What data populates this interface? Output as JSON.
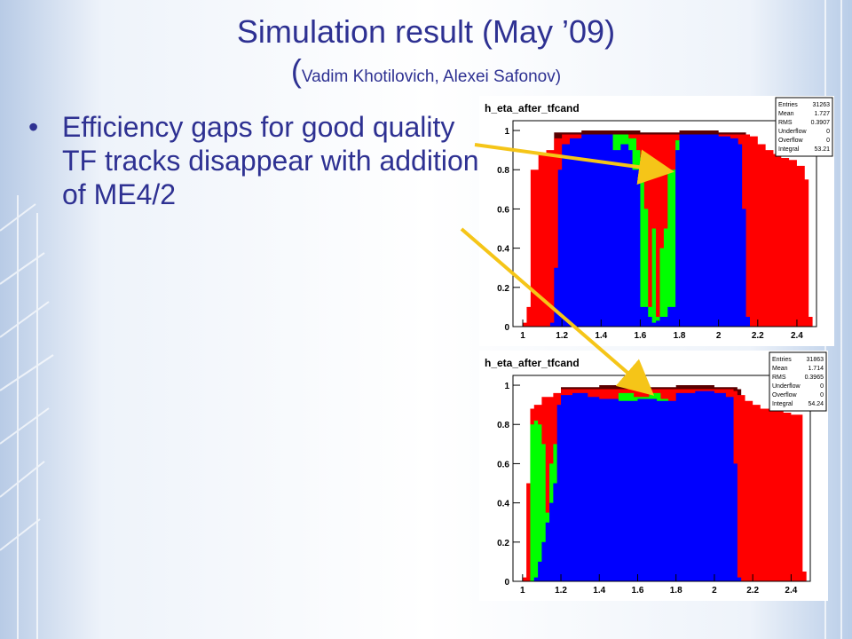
{
  "slide": {
    "title_line1": "Simulation result (May ’09)",
    "title_open": "(",
    "title_authors": "Vadim Khotilovich, Alexei Safonov)",
    "bullet": "Efficiency gaps for good quality TF tracks disappear with addition of ME4/2"
  },
  "colors": {
    "title": "#2e3192",
    "red": "#ff0000",
    "blue": "#0000ff",
    "green": "#00ff00",
    "arrow": "#f5c518"
  },
  "chart_data": [
    {
      "type": "histogram",
      "title": "h_eta_after_tfcand",
      "xlim": [
        0.95,
        2.5
      ],
      "ylim": [
        0,
        1.05
      ],
      "xticks": [
        "1",
        "1.2",
        "1.4",
        "1.6",
        "1.8",
        "2",
        "2.2",
        "2.4"
      ],
      "yticks": [
        "0",
        "0.2",
        "0.4",
        "0.6",
        "0.8",
        "1"
      ],
      "stats": {
        "labels": [
          "Entries",
          "Mean",
          "RMS",
          "Underflow",
          "Overflow",
          "Integral"
        ],
        "values": [
          "31263",
          "1.727",
          "0.3907",
          "0",
          "0",
          "53.21"
        ]
      },
      "red": [
        [
          1.0,
          0.02
        ],
        [
          1.02,
          0.1
        ],
        [
          1.04,
          0.8
        ],
        [
          1.08,
          0.88
        ],
        [
          1.12,
          0.9
        ],
        [
          1.16,
          0.96
        ],
        [
          1.2,
          0.98
        ],
        [
          2.16,
          0.97
        ],
        [
          2.2,
          0.93
        ],
        [
          2.24,
          0.9
        ],
        [
          2.28,
          0.88
        ],
        [
          2.32,
          0.86
        ],
        [
          2.36,
          0.85
        ],
        [
          2.4,
          0.82
        ],
        [
          2.44,
          0.75
        ],
        [
          2.46,
          0.05
        ]
      ],
      "green": [
        [
          1.46,
          0.98
        ],
        [
          1.54,
          0.96
        ],
        [
          1.58,
          0.9
        ],
        [
          1.6,
          0.8
        ],
        [
          1.62,
          0.6
        ],
        [
          1.64,
          0.1
        ],
        [
          1.66,
          0.5
        ],
        [
          1.68,
          0.05
        ],
        [
          1.7,
          0.4
        ],
        [
          1.72,
          0.5
        ],
        [
          1.74,
          0.8
        ],
        [
          1.78,
          0.95
        ]
      ],
      "blue": [
        [
          1.14,
          0.02
        ],
        [
          1.16,
          0.3
        ],
        [
          1.18,
          0.8
        ],
        [
          1.2,
          0.93
        ],
        [
          1.24,
          0.96
        ],
        [
          1.3,
          0.98
        ],
        [
          1.4,
          0.98
        ],
        [
          1.46,
          0.9
        ],
        [
          1.5,
          0.93
        ],
        [
          1.54,
          0.9
        ],
        [
          1.56,
          0.8
        ],
        [
          1.6,
          0.1
        ],
        [
          1.64,
          0.05
        ],
        [
          1.66,
          0.02
        ],
        [
          1.68,
          0.03
        ],
        [
          1.7,
          0.05
        ],
        [
          1.74,
          0.1
        ],
        [
          1.78,
          0.9
        ],
        [
          1.8,
          0.98
        ],
        [
          2.0,
          0.97
        ],
        [
          2.06,
          0.96
        ],
        [
          2.1,
          0.93
        ],
        [
          2.12,
          0.6
        ],
        [
          2.14,
          0.05
        ]
      ],
      "dark": [
        [
          1.16,
          0.99
        ],
        [
          1.3,
          1.0
        ],
        [
          1.6,
          0.99
        ],
        [
          1.8,
          1.0
        ],
        [
          2.0,
          0.99
        ],
        [
          2.14,
          0.98
        ]
      ]
    },
    {
      "type": "histogram",
      "title": "h_eta_after_tfcand",
      "xlim": [
        0.95,
        2.5
      ],
      "ylim": [
        0,
        1.05
      ],
      "xticks": [
        "1",
        "1.2",
        "1.4",
        "1.6",
        "1.8",
        "2",
        "2.2",
        "2.4"
      ],
      "yticks": [
        "0",
        "0.2",
        "0.4",
        "0.6",
        "0.8",
        "1"
      ],
      "stats": {
        "labels": [
          "Entries",
          "Mean",
          "RMS",
          "Underflow",
          "Overflow",
          "Integral"
        ],
        "values": [
          "31863",
          "1.714",
          "0.3965",
          "0",
          "0",
          "54.24"
        ]
      },
      "red": [
        [
          1.0,
          0.02
        ],
        [
          1.02,
          0.5
        ],
        [
          1.04,
          0.88
        ],
        [
          1.06,
          0.9
        ],
        [
          1.1,
          0.94
        ],
        [
          1.16,
          0.96
        ],
        [
          1.2,
          0.98
        ],
        [
          2.1,
          0.97
        ],
        [
          2.12,
          0.95
        ],
        [
          2.16,
          0.92
        ],
        [
          2.2,
          0.9
        ],
        [
          2.24,
          0.88
        ],
        [
          2.28,
          0.88
        ],
        [
          2.32,
          0.87
        ],
        [
          2.36,
          0.86
        ],
        [
          2.4,
          0.85
        ],
        [
          2.44,
          0.85
        ],
        [
          2.46,
          0.05
        ]
      ],
      "green": [
        [
          1.04,
          0.8
        ],
        [
          1.06,
          0.82
        ],
        [
          1.08,
          0.8
        ],
        [
          1.1,
          0.7
        ],
        [
          1.12,
          0.35
        ],
        [
          1.14,
          0.6
        ],
        [
          1.16,
          0.7
        ],
        [
          1.18,
          0.2
        ],
        [
          1.5,
          0.96
        ],
        [
          1.58,
          0.94
        ],
        [
          1.66,
          0.96
        ],
        [
          1.72,
          0.93
        ],
        [
          1.76,
          0.88
        ]
      ],
      "blue": [
        [
          1.06,
          0.02
        ],
        [
          1.08,
          0.1
        ],
        [
          1.1,
          0.2
        ],
        [
          1.12,
          0.3
        ],
        [
          1.14,
          0.4
        ],
        [
          1.16,
          0.5
        ],
        [
          1.18,
          0.9
        ],
        [
          1.2,
          0.95
        ],
        [
          1.26,
          0.96
        ],
        [
          1.34,
          0.94
        ],
        [
          1.4,
          0.93
        ],
        [
          1.5,
          0.92
        ],
        [
          1.6,
          0.93
        ],
        [
          1.7,
          0.92
        ],
        [
          1.8,
          0.96
        ],
        [
          1.9,
          0.97
        ],
        [
          2.0,
          0.96
        ],
        [
          2.06,
          0.94
        ],
        [
          2.1,
          0.6
        ],
        [
          2.12,
          0.02
        ]
      ],
      "dark": [
        [
          1.2,
          0.99
        ],
        [
          1.4,
          1.0
        ],
        [
          1.6,
          0.99
        ],
        [
          1.8,
          1.0
        ],
        [
          2.0,
          0.99
        ],
        [
          2.12,
          0.98
        ]
      ]
    }
  ]
}
